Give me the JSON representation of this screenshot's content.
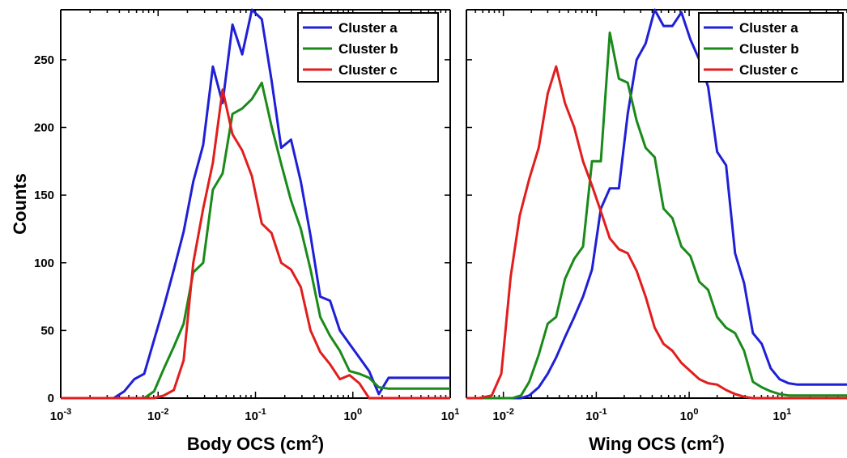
{
  "chart_data": [
    {
      "type": "line",
      "xlabel": "Body OCS (cm",
      "xlabel_sup": "2",
      "xlabel_close": ")",
      "ylabel": "Counts",
      "x_scale": "log",
      "xlim": [
        0.001,
        10
      ],
      "ylim": [
        0,
        287
      ],
      "x_ticks": [
        {
          "base": "10",
          "exp": "-3"
        },
        {
          "base": "10",
          "exp": "-2"
        },
        {
          "base": "10",
          "exp": "-1"
        },
        {
          "base": "10",
          "exp": "0"
        },
        {
          "base": "10",
          "exp": "1"
        }
      ],
      "y_ticks": [
        "0",
        "50",
        "100",
        "150",
        "200",
        "250"
      ],
      "legend_position": "top-right",
      "series": [
        {
          "name": "Cluster a",
          "color": "#1f1fd6",
          "x": [
            0.001,
            0.0035,
            0.0045,
            0.0057,
            0.0072,
            0.0091,
            0.0115,
            0.0145,
            0.0183,
            0.023,
            0.029,
            0.0365,
            0.046,
            0.058,
            0.073,
            0.092,
            0.116,
            0.146,
            0.184,
            0.232,
            0.292,
            0.368,
            0.463,
            0.583,
            0.735,
            0.925,
            1.165,
            1.468,
            1.848,
            2.328,
            2.931,
            3.692,
            4.65,
            5.85,
            7.37,
            10
          ],
          "y": [
            0,
            0,
            5,
            14,
            18,
            43,
            68,
            95,
            123,
            160,
            187,
            245,
            218,
            276,
            254,
            287,
            280,
            235,
            185,
            191,
            160,
            120,
            75,
            72,
            50,
            40,
            30,
            20,
            3,
            15,
            15,
            15,
            15,
            15,
            15,
            15
          ]
        },
        {
          "name": "Cluster b",
          "color": "#1a8a1a",
          "x": [
            0.001,
            0.0072,
            0.0091,
            0.0115,
            0.0145,
            0.0183,
            0.023,
            0.029,
            0.0365,
            0.046,
            0.058,
            0.073,
            0.092,
            0.116,
            0.146,
            0.184,
            0.232,
            0.292,
            0.368,
            0.463,
            0.583,
            0.735,
            0.925,
            1.165,
            1.468,
            1.848,
            2.328,
            2.931,
            3.692,
            4.65,
            5.85,
            7.37,
            10
          ],
          "y": [
            0,
            0,
            5,
            22,
            38,
            55,
            93,
            100,
            154,
            166,
            210,
            214,
            221,
            233,
            201,
            173,
            146,
            125,
            95,
            60,
            46,
            35,
            20,
            18,
            15,
            8,
            7,
            7,
            7,
            7,
            7,
            7,
            7
          ]
        },
        {
          "name": "Cluster c",
          "color": "#e21d1d",
          "x": [
            0.001,
            0.0091,
            0.0115,
            0.0145,
            0.0183,
            0.023,
            0.029,
            0.0365,
            0.046,
            0.058,
            0.073,
            0.092,
            0.116,
            0.146,
            0.184,
            0.232,
            0.292,
            0.368,
            0.463,
            0.583,
            0.735,
            0.925,
            1.165,
            1.468,
            1.848,
            2.328,
            2.931,
            3.692,
            4.65,
            5.85,
            7.37,
            10
          ],
          "y": [
            0,
            0,
            2,
            6,
            28,
            100,
            140,
            174,
            228,
            195,
            183,
            164,
            129,
            122,
            100,
            95,
            82,
            50,
            34,
            25,
            14,
            17,
            11,
            0,
            0,
            0,
            0,
            0,
            0,
            0,
            0,
            0
          ]
        }
      ]
    },
    {
      "type": "line",
      "xlabel": "Wing OCS (cm",
      "xlabel_sup": "2",
      "xlabel_close": ")",
      "ylabel": "",
      "x_scale": "log",
      "xlim": [
        0.004,
        50
      ],
      "ylim": [
        0,
        287
      ],
      "x_ticks": [
        {
          "base": "10",
          "exp": "-2"
        },
        {
          "base": "10",
          "exp": "-1"
        },
        {
          "base": "10",
          "exp": "0"
        },
        {
          "base": "10",
          "exp": "1"
        }
      ],
      "y_ticks": [],
      "legend_position": "top-right",
      "series": [
        {
          "name": "Cluster a",
          "color": "#1f1fd6",
          "x": [
            0.004,
            0.0155,
            0.019,
            0.024,
            0.03,
            0.037,
            0.046,
            0.058,
            0.072,
            0.09,
            0.112,
            0.14,
            0.175,
            0.218,
            0.272,
            0.34,
            0.425,
            0.53,
            0.66,
            0.825,
            1.03,
            1.285,
            1.6,
            2.0,
            2.5,
            3.12,
            3.9,
            4.85,
            6.05,
            7.55,
            9.4,
            11.75,
            14.65,
            18.3,
            22.8,
            28.4,
            35.5,
            50
          ],
          "y": [
            0,
            0,
            2,
            8,
            18,
            30,
            45,
            60,
            75,
            95,
            140,
            155,
            155,
            210,
            250,
            262,
            287,
            275,
            275,
            285,
            265,
            250,
            230,
            182,
            172,
            107,
            85,
            48,
            40,
            22,
            14,
            11,
            10,
            10,
            10,
            10,
            10,
            10
          ]
        },
        {
          "name": "Cluster b",
          "color": "#1a8a1a",
          "x": [
            0.004,
            0.0125,
            0.0155,
            0.019,
            0.024,
            0.03,
            0.037,
            0.046,
            0.058,
            0.072,
            0.09,
            0.112,
            0.14,
            0.175,
            0.218,
            0.272,
            0.34,
            0.425,
            0.53,
            0.66,
            0.825,
            1.03,
            1.285,
            1.6,
            2.0,
            2.5,
            3.12,
            3.9,
            4.85,
            6.05,
            7.55,
            9.4,
            11.75,
            14.65,
            18.3,
            22.8,
            28.4,
            50
          ],
          "y": [
            0,
            0,
            2,
            12,
            32,
            55,
            60,
            88,
            103,
            112,
            175,
            175,
            270,
            236,
            233,
            205,
            185,
            178,
            140,
            133,
            112,
            105,
            86,
            80,
            60,
            52,
            48,
            35,
            12,
            8,
            5,
            3,
            2,
            2,
            2,
            2,
            2,
            2
          ]
        },
        {
          "name": "Cluster c",
          "color": "#e21d1d",
          "x": [
            0.004,
            0.0055,
            0.0075,
            0.0095,
            0.012,
            0.015,
            0.019,
            0.024,
            0.03,
            0.037,
            0.046,
            0.058,
            0.072,
            0.09,
            0.112,
            0.14,
            0.175,
            0.218,
            0.272,
            0.34,
            0.425,
            0.53,
            0.66,
            0.825,
            1.03,
            1.285,
            1.6,
            2.0,
            2.5,
            3.12,
            3.9,
            4.85,
            50
          ],
          "y": [
            0,
            0,
            2,
            18,
            90,
            135,
            162,
            185,
            225,
            245,
            218,
            200,
            175,
            157,
            138,
            118,
            110,
            107,
            94,
            75,
            52,
            40,
            35,
            26,
            20,
            14,
            11,
            10,
            6,
            3,
            1,
            0,
            0
          ]
        }
      ]
    }
  ]
}
